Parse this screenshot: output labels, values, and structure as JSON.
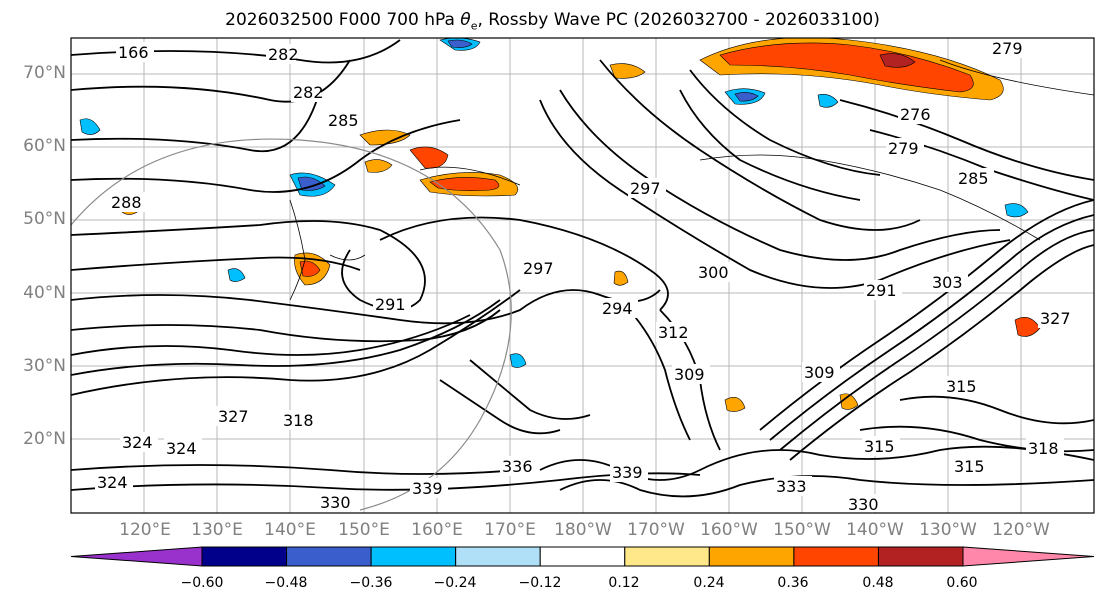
{
  "title_main": "2026032500 F000 700 hPa ",
  "title_var": "θ",
  "title_sub": "e",
  "title_rest": ", Rossby Wave PC (2026032700 - 2026033100)",
  "lat_labels": [
    "70°N",
    "60°N",
    "50°N",
    "40°N",
    "30°N",
    "20°N"
  ],
  "lon_labels": [
    "120°E",
    "130°E",
    "140°E",
    "150°E",
    "160°E",
    "170°E",
    "180°W",
    "170°W",
    "160°W",
    "150°W",
    "140°W",
    "130°W",
    "120°W"
  ],
  "contour_labels": [
    "166",
    "282",
    "282",
    "285",
    "288",
    "297",
    "297",
    "294",
    "291",
    "300",
    "312",
    "309",
    "309",
    "327",
    "324",
    "324",
    "324",
    "318",
    "330",
    "336",
    "339",
    "339",
    "333",
    "315",
    "315",
    "315",
    "318",
    "330",
    "327",
    "276",
    "279",
    "285",
    "279",
    "303",
    "291"
  ],
  "colorbar": {
    "ticks": [
      "−0.60",
      "−0.48",
      "−0.36",
      "−0.24",
      "−0.12",
      "0.12",
      "0.24",
      "0.36",
      "0.48",
      "0.60"
    ],
    "colors": [
      "#9932cc",
      "#00008b",
      "#3a5fcd",
      "#00bfff",
      "#b0e0f8",
      "#ffffff",
      "#ffe88a",
      "#ffa500",
      "#ff4500",
      "#b22222",
      "#ff88aa"
    ]
  }
}
